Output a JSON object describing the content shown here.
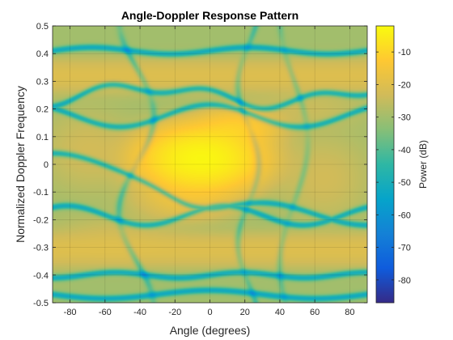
{
  "chart_data": {
    "type": "heatmap",
    "title": "Angle-Doppler Response Pattern",
    "xlabel": "Angle (degrees)",
    "ylabel": "Normalized Doppler Frequency",
    "xlim": [
      -90,
      90
    ],
    "ylim": [
      -0.5,
      0.5
    ],
    "xticks": [
      -80,
      -60,
      -40,
      -20,
      0,
      20,
      40,
      60,
      80
    ],
    "yticks": [
      -0.5,
      -0.4,
      -0.3,
      -0.2,
      -0.1,
      0,
      0.1,
      0.2,
      0.3,
      0.4,
      0.5
    ],
    "colorbar": {
      "label": "Power (dB)",
      "range": [
        -87,
        -2
      ],
      "ticks": [
        -80,
        -70,
        -60,
        -50,
        -40,
        -30,
        -20,
        -10
      ],
      "colormap": "parula"
    },
    "grid": true,
    "peaks": [
      {
        "angle": -5,
        "doppler": 0.02,
        "power_db": -3
      },
      {
        "angle": 15,
        "doppler": 0.13,
        "power_db": -12
      }
    ],
    "stripes": [
      {
        "doppler": 0.32,
        "power_db": -20
      },
      {
        "doppler": -0.31,
        "power_db": -20
      }
    ],
    "nulls": [
      {
        "doppler": 0.41
      },
      {
        "doppler": 0.25
      },
      {
        "doppler": -0.09
      },
      {
        "doppler": -0.18
      },
      {
        "doppler": -0.4
      },
      {
        "doppler": -0.47
      }
    ]
  },
  "figure": {
    "background": "#ffffff",
    "axes_background": "#ffffff"
  }
}
